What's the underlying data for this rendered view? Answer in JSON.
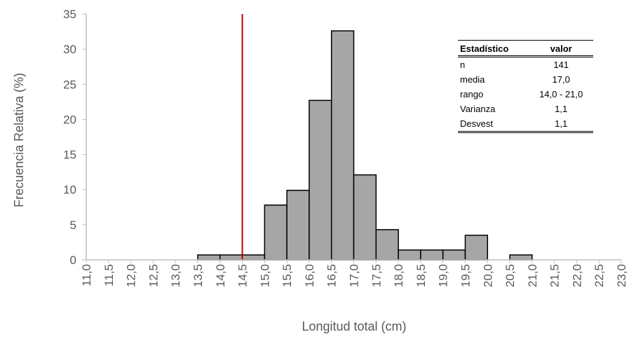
{
  "chart_data": {
    "type": "bar",
    "xlabel": "Longitud total (cm)",
    "ylabel": "Frecuencia Relativa (%)",
    "ylim": [
      0,
      35
    ],
    "yticks": [
      "0",
      "5",
      "10",
      "15",
      "20",
      "25",
      "30",
      "35"
    ],
    "x_tick_labels": [
      "11,0",
      "11,5",
      "12,0",
      "12,5",
      "13,0",
      "13,5",
      "14,0",
      "14,5",
      "15,0",
      "15,5",
      "16,0",
      "16,5",
      "17,0",
      "17,5",
      "18,0",
      "18,5",
      "19,0",
      "19,5",
      "20,0",
      "20,5",
      "21,0",
      "21,5",
      "22,0",
      "22,5",
      "23,0"
    ],
    "x_range": [
      11.0,
      23.0
    ],
    "bins": [
      {
        "x": 13.75,
        "value": 0.7
      },
      {
        "x": 14.25,
        "value": 0.7
      },
      {
        "x": 14.75,
        "value": 0.7
      },
      {
        "x": 15.25,
        "value": 7.8
      },
      {
        "x": 15.75,
        "value": 9.9
      },
      {
        "x": 16.25,
        "value": 22.7
      },
      {
        "x": 16.75,
        "value": 32.6
      },
      {
        "x": 17.25,
        "value": 12.1
      },
      {
        "x": 17.75,
        "value": 4.3
      },
      {
        "x": 18.25,
        "value": 1.4
      },
      {
        "x": 18.75,
        "value": 1.4
      },
      {
        "x": 19.25,
        "value": 1.4
      },
      {
        "x": 19.75,
        "value": 3.5
      },
      {
        "x": 20.75,
        "value": 0.7
      }
    ],
    "bin_width": 0.5,
    "reference_line_x": 14.5,
    "colors": {
      "bar_fill": "#a6a6a6",
      "bar_stroke": "#000000",
      "reference_line": "#c00000",
      "axis": "#bfbfbf",
      "tick_text": "#595959"
    },
    "grid": false,
    "legend": "none"
  },
  "stats_table": {
    "headers": [
      "Estadístico",
      "valor"
    ],
    "rows": [
      [
        "n",
        "141"
      ],
      [
        "media",
        "17,0"
      ],
      [
        "rango",
        "14,0 - 21,0"
      ],
      [
        "Varianza",
        "1,1"
      ],
      [
        "Desvest",
        "1,1"
      ]
    ]
  }
}
